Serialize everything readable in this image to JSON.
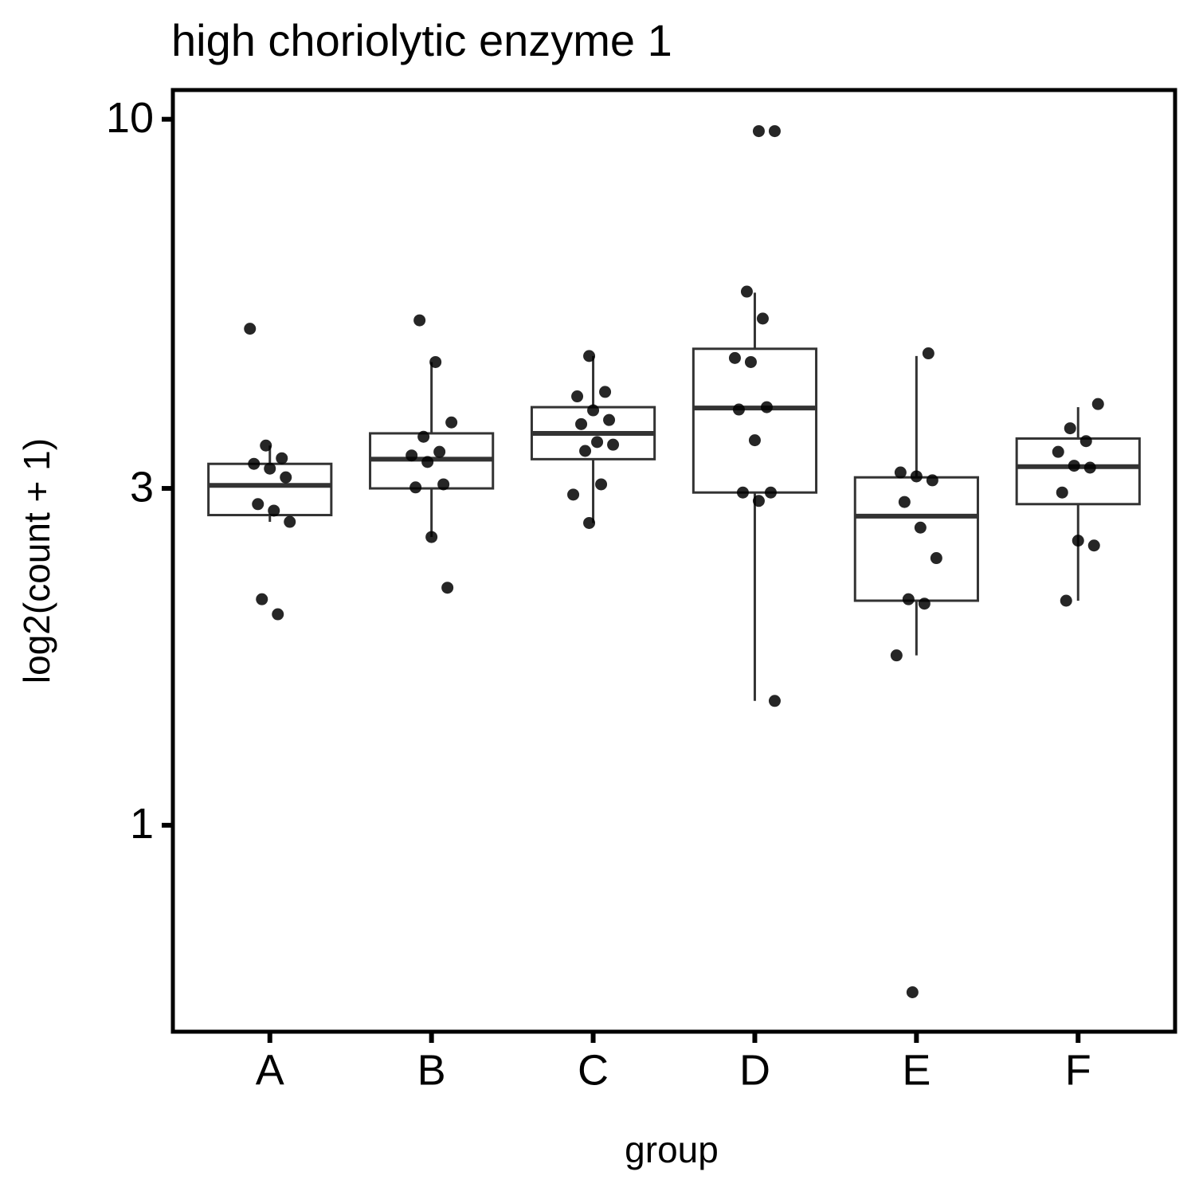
{
  "chart_data": {
    "type": "box",
    "title": "high choriolytic enzyme 1",
    "x_label": "group",
    "y_label": "log2(count + 1)",
    "y_scale": "log",
    "categories": [
      "A",
      "B",
      "C",
      "D",
      "E",
      "F"
    ],
    "ylim": [
      0.51,
      11.0
    ],
    "yticks": [
      1,
      3,
      10
    ],
    "boxes": [
      {
        "whisker_low": 2.69,
        "q1": 2.75,
        "median": 3.03,
        "q3": 3.25,
        "whisker_high": 3.45
      },
      {
        "whisker_low": 2.56,
        "q1": 3.0,
        "median": 3.3,
        "q3": 3.59,
        "whisker_high": 4.53
      },
      {
        "whisker_low": 2.68,
        "q1": 3.3,
        "median": 3.59,
        "q3": 3.91,
        "whisker_high": 4.62
      },
      {
        "whisker_low": 1.5,
        "q1": 2.96,
        "median": 3.9,
        "q3": 4.73,
        "whisker_high": 5.68
      },
      {
        "whisker_low": 1.74,
        "q1": 2.08,
        "median": 2.74,
        "q3": 3.11,
        "whisker_high": 4.62
      },
      {
        "whisker_low": 2.08,
        "q1": 2.85,
        "median": 3.22,
        "q3": 3.53,
        "whisker_high": 3.91
      }
    ],
    "points": [
      [
        5.05,
        3.45,
        3.31,
        3.25,
        3.2,
        3.11,
        2.85,
        2.79,
        2.69,
        2.09,
        1.99
      ],
      [
        5.19,
        4.53,
        3.72,
        3.55,
        3.38,
        3.34,
        3.27,
        3.04,
        3.01,
        2.56,
        2.17
      ],
      [
        4.62,
        4.11,
        4.05,
        3.87,
        3.75,
        3.7,
        3.49,
        3.46,
        3.39,
        3.04,
        2.94,
        2.68
      ],
      [
        9.62,
        9.62,
        5.7,
        5.22,
        4.59,
        4.53,
        3.91,
        3.88,
        3.51,
        2.96,
        2.96,
        2.88,
        1.5
      ],
      [
        4.66,
        3.16,
        3.12,
        3.08,
        2.87,
        2.64,
        2.39,
        2.09,
        2.06,
        1.74,
        0.58
      ],
      [
        3.95,
        3.65,
        3.5,
        3.38,
        3.23,
        3.21,
        2.96,
        2.53,
        2.49,
        2.08
      ]
    ],
    "box_color": "#333333",
    "point_color": "#000000"
  }
}
